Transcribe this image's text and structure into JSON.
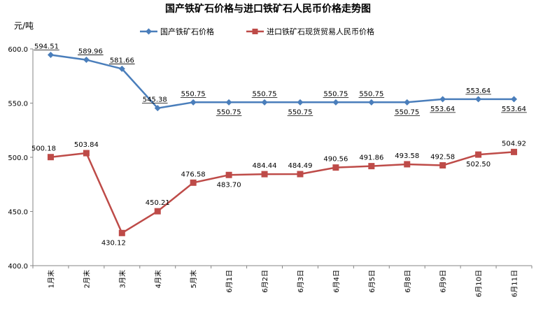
{
  "chart_data": {
    "type": "line",
    "title": "国产铁矿石价格与进口铁矿石人民币价格走势图",
    "ylabel": "元/吨",
    "xlabel": "",
    "ylim": [
      400,
      600
    ],
    "yticks": [
      "400.0",
      "450.0",
      "500.0",
      "550.0",
      "600.0"
    ],
    "grid": false,
    "legend_position": "top",
    "categories": [
      "1月末",
      "2月末",
      "3月末",
      "4月末",
      "5月末",
      "6月1日",
      "6月2日",
      "6月3日",
      "6月4日",
      "6月5日",
      "6月8日",
      "6月9日",
      "6月10日",
      "6月11日"
    ],
    "series": [
      {
        "name": "国产铁矿石价格",
        "color": "#4a7ebb",
        "marker": "diamond",
        "values": [
          594.51,
          589.96,
          581.66,
          545.38,
          550.75,
          550.75,
          550.75,
          550.75,
          550.75,
          550.75,
          550.75,
          553.64,
          553.64,
          553.64
        ],
        "labels": [
          "594.51",
          "589.96",
          "581.66",
          "545.38",
          "550.75",
          "550.75",
          "550.75",
          "550.75",
          "550.75",
          "550.75",
          "550.75",
          "553.64",
          "553.64",
          "553.64"
        ]
      },
      {
        "name": "进口铁矿石现货贸易人民币价格",
        "color": "#be4b48",
        "marker": "square",
        "values": [
          500.18,
          503.84,
          430.12,
          450.21,
          476.58,
          483.7,
          484.44,
          484.49,
          490.56,
          491.86,
          493.58,
          492.58,
          502.5,
          504.92
        ],
        "labels": [
          "500.18",
          "503.84",
          "430.12",
          "450.21",
          "476.58",
          "483.70",
          "484.44",
          "484.49",
          "490.56",
          "491.86",
          "493.58",
          "492.58",
          "502.50",
          "504.92"
        ]
      }
    ]
  }
}
